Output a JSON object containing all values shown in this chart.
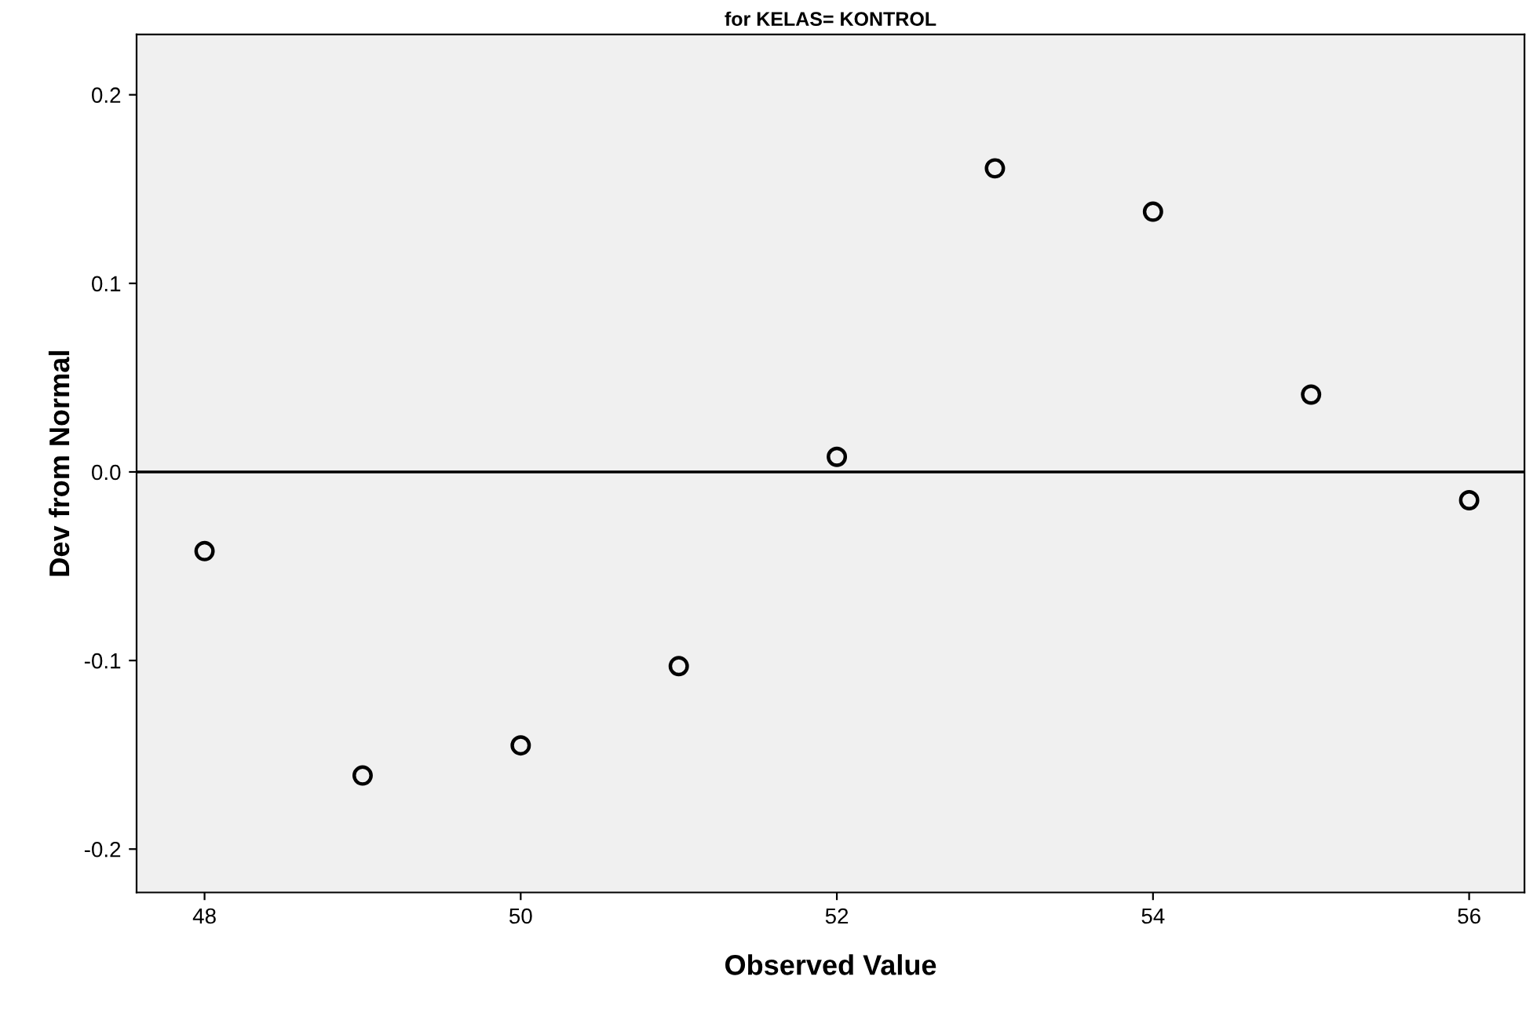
{
  "chart_data": {
    "type": "scatter",
    "title": "for KELAS= KONTROL",
    "xlabel": "Observed Value",
    "ylabel": "Dev from Normal",
    "x": [
      48,
      49,
      50,
      51,
      52,
      53,
      54,
      55,
      56
    ],
    "values": [
      -0.042,
      -0.161,
      -0.145,
      -0.103,
      0.008,
      0.161,
      0.138,
      0.041,
      -0.015
    ],
    "color": "#000000",
    "marker": "circle",
    "xlim": [
      47.57,
      56.35
    ],
    "ylim": [
      -0.223,
      0.232
    ],
    "xticks": [
      48,
      50,
      52,
      54,
      56
    ],
    "yticks": [
      -0.2,
      -0.1,
      {
        "value": 0,
        "label": "0.0"
      },
      0.1,
      0.2
    ],
    "ref_lines": [
      {
        "axis": "y",
        "value": 0,
        "label": null,
        "color": "#000000"
      }
    ],
    "grid": false,
    "legend": false
  }
}
